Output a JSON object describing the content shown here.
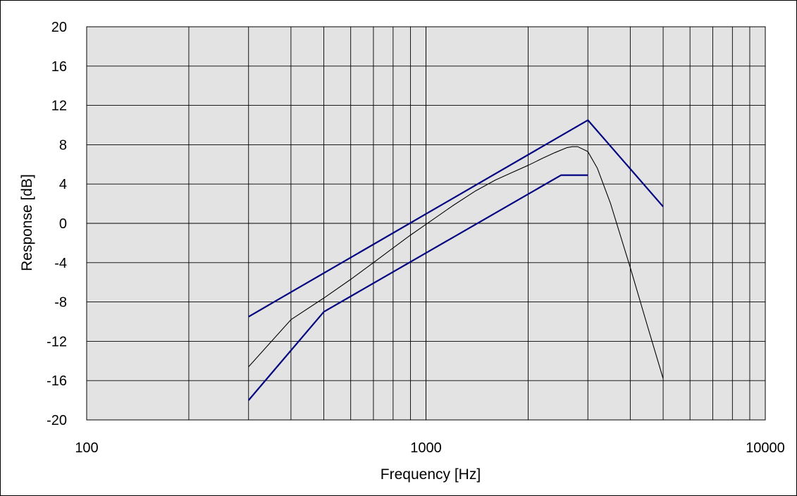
{
  "chart_data": {
    "type": "line",
    "xlabel": "Frequency [Hz]",
    "ylabel": "Response [dB]",
    "xscale": "log",
    "xlim": [
      100,
      10000
    ],
    "ylim": [
      -20,
      20
    ],
    "x_tick_labels": [
      "100",
      "1000",
      "10000"
    ],
    "y_ticks": [
      20,
      16,
      12,
      8,
      4,
      0,
      -4,
      -8,
      -12,
      -16,
      -20
    ],
    "y_tick_labels": [
      "20",
      "16",
      "12",
      "8",
      "4",
      "0",
      "-4",
      "-8",
      "-12",
      "-16",
      "-20"
    ],
    "grid": true,
    "legend": "none",
    "colors": {
      "plot_background": "#e3e3e3",
      "grid": "#000000",
      "limit_lines": "#000080",
      "response": "#000000"
    },
    "series": [
      {
        "color": "#000080",
        "x": [
          300,
          3000,
          5000
        ],
        "y": [
          -9.5,
          10.5,
          1.7
        ]
      },
      {
        "color": "#000080",
        "x": [
          300,
          500,
          2500,
          3000
        ],
        "y": [
          -18,
          -9,
          4.9,
          4.9
        ]
      },
      {
        "color": "#000000",
        "x": [
          300,
          400,
          500,
          600,
          700,
          800,
          900,
          1000,
          1200,
          1400,
          1600,
          1800,
          2000,
          2200,
          2400,
          2600,
          2700,
          2800,
          3000,
          3200,
          3500,
          4000,
          4500,
          5000
        ],
        "y": [
          -14.6,
          -9.8,
          -7.6,
          -5.7,
          -4.0,
          -2.5,
          -1.2,
          -0.1,
          1.8,
          3.3,
          4.4,
          5.2,
          5.9,
          6.6,
          7.2,
          7.7,
          7.8,
          7.8,
          7.3,
          5.6,
          2.0,
          -4.5,
          -10.5,
          -15.8
        ]
      }
    ]
  }
}
